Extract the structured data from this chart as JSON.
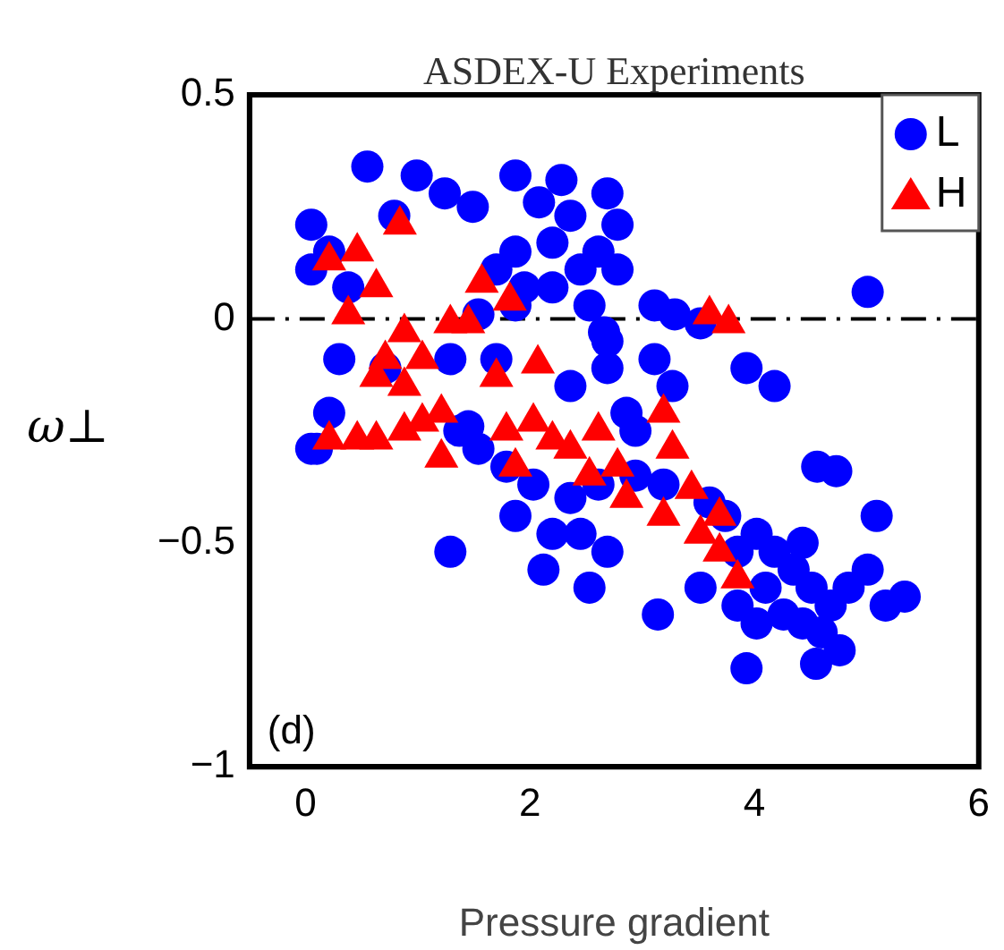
{
  "chart_data": {
    "type": "scatter",
    "title": "ASDEX-U Experiments",
    "xlabel": "Pressure gradient",
    "ylabel": "ω⊥",
    "annotations": [
      "(d)"
    ],
    "xlim": [
      -0.5,
      6
    ],
    "xticks": [
      0,
      2,
      4,
      6
    ],
    "ylim": [
      -1,
      0.5
    ],
    "yticks": [
      {
        "value": -1,
        "label": "−1"
      },
      {
        "value": -0.5,
        "label": "−0.5"
      },
      0,
      0.5
    ],
    "grid": false,
    "legend": "top right",
    "ref_lines": [
      {
        "axis": "y",
        "value": 0,
        "line_style": "dashed",
        "color": "#000000"
      }
    ],
    "series": [
      {
        "name": "L",
        "color": "#0000ff",
        "marker": "circle",
        "x": [
          0.05,
          0.21,
          0.55,
          0.99,
          1.24,
          1.49,
          0.05,
          0.38,
          0.79,
          1.87,
          2.08,
          2.28,
          2.69,
          2.78,
          2.36,
          2.2,
          1.87,
          1.7,
          1.95,
          2.2,
          2.45,
          2.61,
          2.78,
          2.53,
          1.87,
          2.69,
          3.11,
          3.29,
          3.52,
          5.01,
          3.93,
          4.18,
          2.66,
          2.69,
          3.11,
          3.27,
          0.3,
          0.71,
          0.21,
          0.05,
          2.36,
          2.86,
          2.94,
          1.37,
          1.54,
          1.79,
          2.03,
          1.87,
          2.2,
          2.45,
          2.69,
          2.36,
          2.61,
          2.94,
          3.19,
          3.44,
          3.6,
          3.74,
          3.85,
          4.02,
          4.18,
          4.35,
          4.51,
          4.68,
          4.84,
          5.01,
          5.17,
          5.34,
          5.09,
          4.56,
          4.73,
          3.85,
          4.02,
          4.26,
          4.43,
          4.6,
          3.14,
          3.52,
          3.93,
          4.55,
          4.76,
          1.29,
          0.1,
          1.45,
          2.12,
          2.53,
          1.29,
          1.54,
          1.7,
          2.03,
          4.43,
          4.1
        ],
        "values": [
          0.21,
          0.15,
          0.34,
          0.32,
          0.28,
          0.25,
          0.11,
          0.07,
          0.23,
          0.32,
          0.26,
          0.31,
          0.28,
          0.21,
          0.23,
          0.17,
          0.15,
          0.11,
          0.07,
          0.07,
          0.11,
          0.15,
          0.11,
          0.03,
          0.03,
          -0.05,
          0.03,
          0.01,
          -0.01,
          0.06,
          -0.11,
          -0.15,
          -0.03,
          -0.11,
          -0.09,
          -0.15,
          -0.09,
          -0.11,
          -0.21,
          -0.29,
          -0.15,
          -0.21,
          -0.25,
          -0.25,
          -0.29,
          -0.33,
          -0.37,
          -0.44,
          -0.48,
          -0.48,
          -0.52,
          -0.4,
          -0.37,
          -0.35,
          -0.37,
          null,
          -0.41,
          -0.44,
          -0.52,
          -0.48,
          -0.52,
          -0.56,
          -0.6,
          -0.64,
          -0.6,
          -0.56,
          -0.64,
          -0.62,
          -0.44,
          -0.33,
          -0.34,
          -0.64,
          -0.68,
          -0.66,
          -0.68,
          -0.7,
          -0.66,
          -0.6,
          -0.78,
          -0.77,
          -0.74,
          -0.52,
          -0.29,
          -0.24,
          -0.56,
          -0.6,
          -0.09,
          0.01,
          -0.09,
          null,
          -0.5,
          -0.6
        ]
      },
      {
        "name": "H",
        "color": "#ff0000",
        "marker": "triangle",
        "x": [
          0.38,
          0.63,
          0.84,
          0.88,
          0.46,
          0.21,
          0.71,
          1.04,
          1.29,
          1.57,
          1.82,
          2.07,
          0.63,
          0.88,
          0.21,
          0.46,
          0.63,
          0.88,
          1.04,
          1.21,
          1.79,
          1.87,
          2.03,
          2.2,
          2.36,
          2.53,
          2.61,
          2.78,
          2.86,
          3.19,
          3.27,
          3.44,
          3.52,
          3.69,
          3.85,
          3.69,
          3.19,
          3.6,
          3.77,
          1.7,
          1.21,
          1.45
        ],
        "values": [
          0.01,
          0.07,
          0.21,
          -0.03,
          0.15,
          0.13,
          -0.09,
          -0.09,
          -0.01,
          0.08,
          0.04,
          -0.1,
          -0.13,
          -0.15,
          -0.27,
          -0.27,
          -0.27,
          -0.25,
          -0.23,
          -0.21,
          -0.25,
          -0.33,
          -0.23,
          -0.27,
          -0.29,
          -0.35,
          -0.25,
          -0.33,
          -0.4,
          -0.44,
          -0.29,
          -0.38,
          -0.48,
          -0.52,
          -0.58,
          -0.44,
          -0.21,
          0.01,
          -0.01,
          -0.13,
          -0.31,
          -0.01
        ]
      }
    ]
  }
}
